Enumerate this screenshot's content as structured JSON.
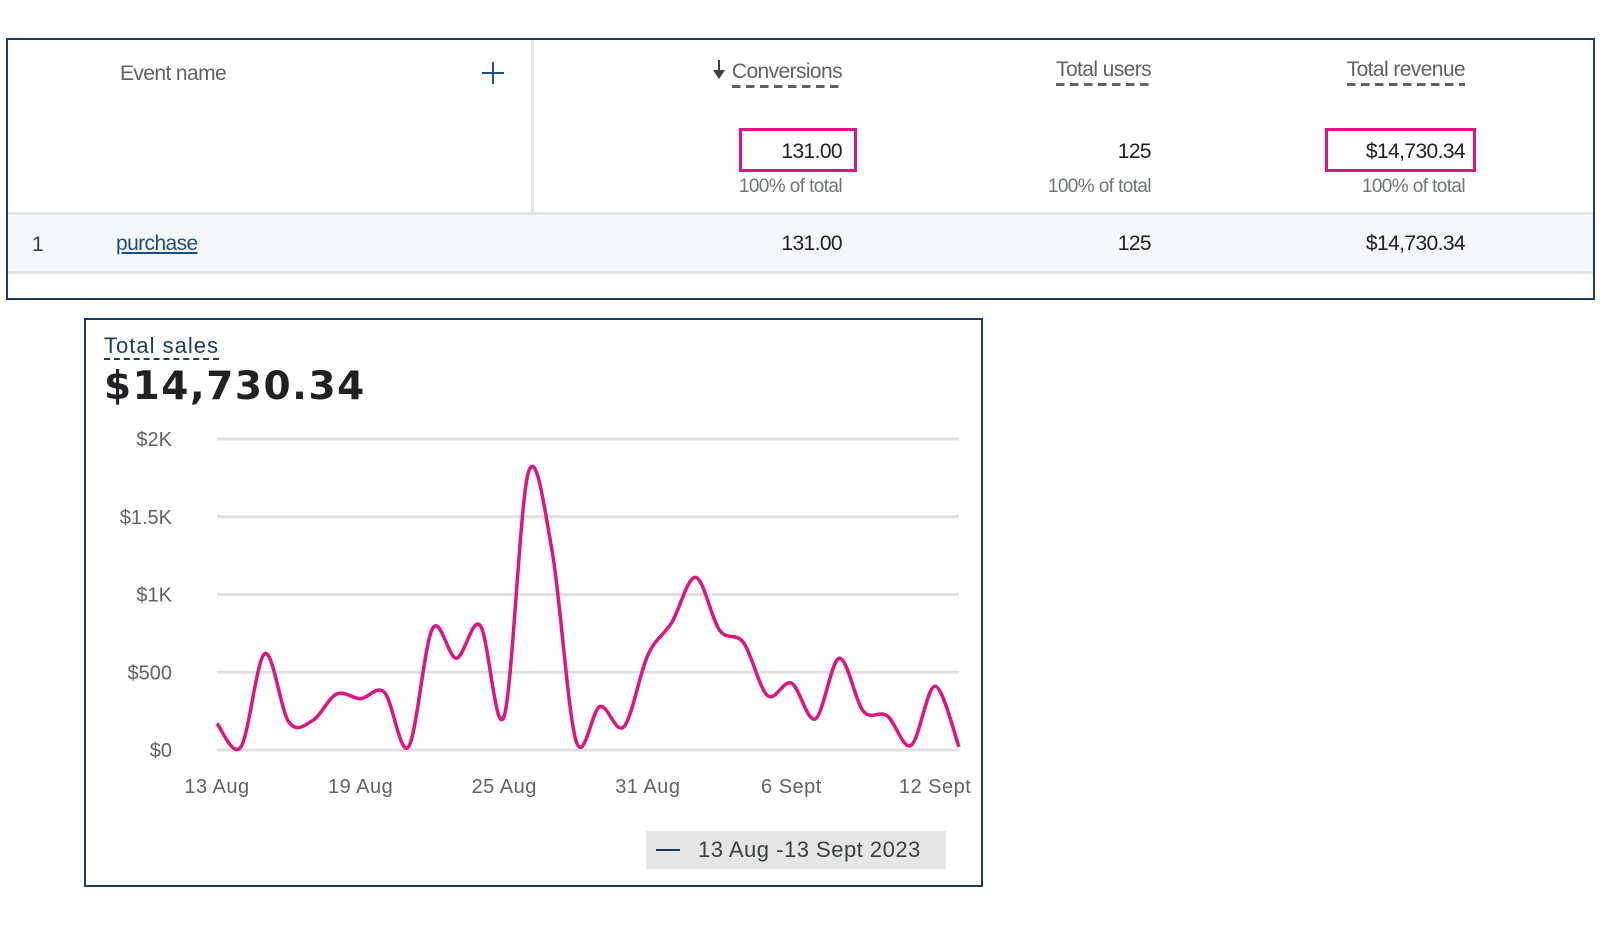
{
  "table": {
    "headers": {
      "event_name": "Event name",
      "conversions": "Conversions",
      "total_users": "Total users",
      "total_revenue": "Total revenue"
    },
    "totals": {
      "conversions": "131.00",
      "conversions_pct": "100% of total",
      "total_users": "125",
      "total_users_pct": "100% of total",
      "total_revenue": "$14,730.34",
      "total_revenue_pct": "100% of total"
    },
    "rows": [
      {
        "index": "1",
        "event": "purchase",
        "conversions": "131.00",
        "total_users": "125",
        "total_revenue": "$14,730.34"
      }
    ],
    "highlight_color": "#e0147f"
  },
  "card": {
    "title": "Total sales",
    "value": "$14,730.34",
    "legend": "13 Aug -13 Sept 2023"
  },
  "chart_data": {
    "type": "line",
    "y_ticks": [
      "$0",
      "$500",
      "$1K",
      "$1.5K",
      "$2K"
    ],
    "ylim": [
      0,
      2000
    ],
    "x_ticks": [
      "13 Aug",
      "19 Aug",
      "25 Aug",
      "31 Aug",
      "6 Sept",
      "12 Sept"
    ],
    "grid": true,
    "line_color": "#e0147f",
    "series": [
      {
        "name": "13 Aug -13 Sept 2023",
        "x": [
          "13 Aug",
          "14 Aug",
          "15 Aug",
          "16 Aug",
          "17 Aug",
          "18 Aug",
          "19 Aug",
          "20 Aug",
          "21 Aug",
          "22 Aug",
          "23 Aug",
          "24 Aug",
          "25 Aug",
          "26 Aug",
          "27 Aug",
          "28 Aug",
          "29 Aug",
          "30 Aug",
          "31 Aug",
          "1 Sept",
          "2 Sept",
          "3 Sept",
          "4 Sept",
          "5 Sept",
          "6 Sept",
          "7 Sept",
          "8 Sept",
          "9 Sept",
          "10 Sept",
          "11 Sept",
          "12 Sept",
          "13 Sept"
        ],
        "values": [
          170,
          20,
          620,
          180,
          190,
          360,
          330,
          370,
          20,
          780,
          590,
          800,
          220,
          1780,
          1280,
          60,
          280,
          150,
          610,
          820,
          1110,
          770,
          690,
          350,
          430,
          200,
          590,
          250,
          220,
          30,
          410,
          20
        ]
      }
    ]
  }
}
